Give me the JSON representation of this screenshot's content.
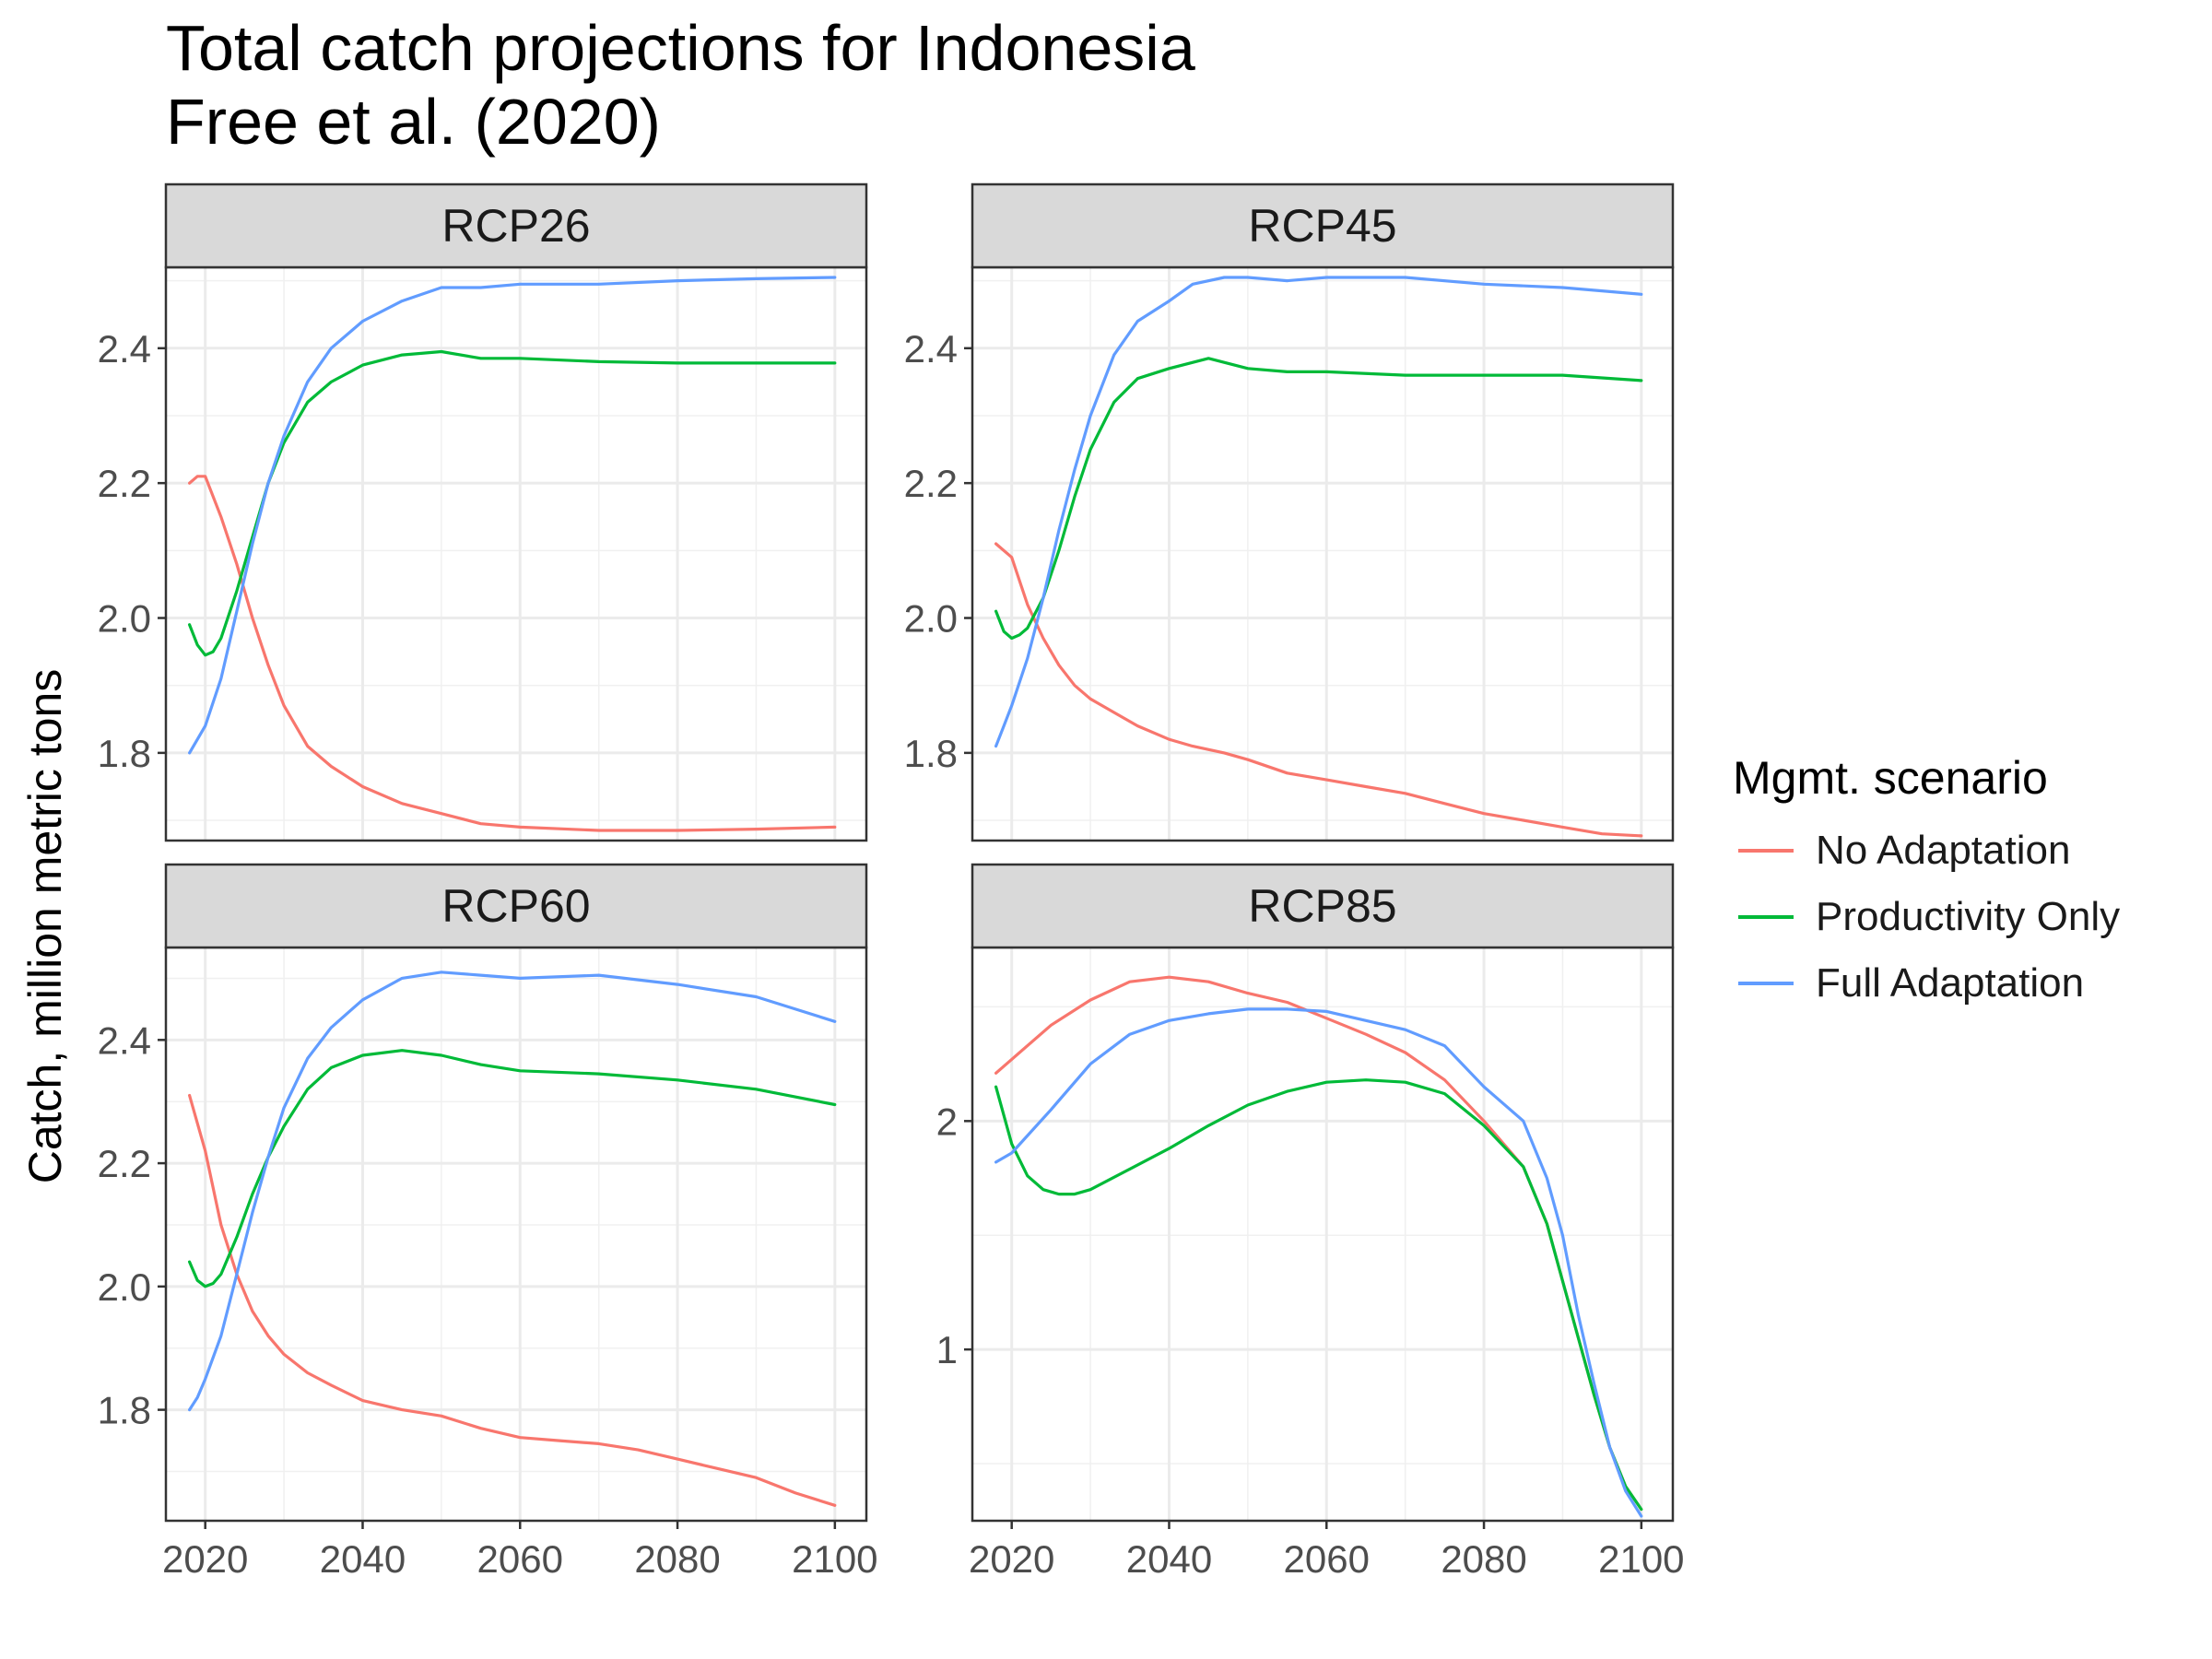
{
  "title_lines": [
    "Total catch projections for Indonesia",
    "Free et al. (2020)"
  ],
  "legend": {
    "title": "Mgmt. scenario",
    "items": [
      {
        "label": "No Adaptation",
        "color": "#F8766D"
      },
      {
        "label": "Productivity Only",
        "color": "#00BA38"
      },
      {
        "label": "Full Adaptation",
        "color": "#619CFF"
      }
    ]
  },
  "chart_data": {
    "type": "line",
    "ylabel": "Catch, million metric tons",
    "xlabel": "",
    "xlim": [
      2015,
      2104
    ],
    "x_ticks": [
      2020,
      2040,
      2060,
      2080,
      2100
    ],
    "grid": true,
    "legend_position": "right",
    "panels": [
      {
        "name": "RCP26",
        "ylim": [
          1.67,
          2.52
        ],
        "y_ticks": [
          1.8,
          2.0,
          2.2,
          2.4
        ],
        "y_tick_labels": [
          "1.8",
          "2.0",
          "2.2",
          "2.4"
        ],
        "series": [
          {
            "name": "No Adaptation",
            "x": [
              2018,
              2019,
              2020,
              2022,
              2024,
              2026,
              2028,
              2030,
              2033,
              2036,
              2040,
              2045,
              2050,
              2055,
              2060,
              2070,
              2080,
              2090,
              2100
            ],
            "values": [
              2.2,
              2.21,
              2.21,
              2.15,
              2.08,
              2.0,
              1.93,
              1.87,
              1.81,
              1.78,
              1.75,
              1.725,
              1.71,
              1.695,
              1.69,
              1.685,
              1.685,
              1.687,
              1.69
            ]
          },
          {
            "name": "Productivity Only",
            "x": [
              2018,
              2019,
              2020,
              2021,
              2022,
              2024,
              2026,
              2028,
              2030,
              2033,
              2036,
              2040,
              2045,
              2050,
              2055,
              2060,
              2070,
              2080,
              2090,
              2100
            ],
            "values": [
              1.99,
              1.96,
              1.945,
              1.95,
              1.97,
              2.04,
              2.12,
              2.2,
              2.26,
              2.32,
              2.35,
              2.375,
              2.39,
              2.395,
              2.385,
              2.385,
              2.38,
              2.378,
              2.378,
              2.378
            ]
          },
          {
            "name": "Full Adaptation",
            "x": [
              2018,
              2019,
              2020,
              2022,
              2024,
              2026,
              2028,
              2030,
              2033,
              2036,
              2040,
              2045,
              2050,
              2055,
              2060,
              2070,
              2080,
              2090,
              2100
            ],
            "values": [
              1.8,
              1.82,
              1.84,
              1.91,
              2.01,
              2.11,
              2.2,
              2.27,
              2.35,
              2.4,
              2.44,
              2.47,
              2.49,
              2.49,
              2.495,
              2.495,
              2.5,
              2.503,
              2.505
            ]
          }
        ]
      },
      {
        "name": "RCP45",
        "ylim": [
          1.67,
          2.52
        ],
        "y_ticks": [
          1.8,
          2.0,
          2.2,
          2.4
        ],
        "y_tick_labels": [
          "1.8",
          "2.0",
          "2.2",
          "2.4"
        ],
        "series": [
          {
            "name": "No Adaptation",
            "x": [
              2018,
              2020,
              2022,
              2024,
              2026,
              2028,
              2030,
              2033,
              2036,
              2040,
              2043,
              2047,
              2050,
              2055,
              2060,
              2065,
              2070,
              2075,
              2080,
              2085,
              2090,
              2095,
              2100
            ],
            "values": [
              2.11,
              2.09,
              2.02,
              1.97,
              1.93,
              1.9,
              1.88,
              1.86,
              1.84,
              1.82,
              1.81,
              1.8,
              1.79,
              1.77,
              1.76,
              1.75,
              1.74,
              1.725,
              1.71,
              1.7,
              1.69,
              1.68,
              1.677
            ]
          },
          {
            "name": "Productivity Only",
            "x": [
              2018,
              2019,
              2020,
              2021,
              2022,
              2024,
              2026,
              2028,
              2030,
              2033,
              2036,
              2040,
              2045,
              2050,
              2055,
              2060,
              2070,
              2080,
              2090,
              2100
            ],
            "values": [
              2.01,
              1.98,
              1.97,
              1.975,
              1.985,
              2.03,
              2.1,
              2.18,
              2.25,
              2.32,
              2.355,
              2.37,
              2.385,
              2.37,
              2.365,
              2.365,
              2.36,
              2.36,
              2.36,
              2.352
            ]
          },
          {
            "name": "Full Adaptation",
            "x": [
              2018,
              2019,
              2020,
              2022,
              2024,
              2026,
              2028,
              2030,
              2033,
              2036,
              2040,
              2043,
              2047,
              2050,
              2055,
              2060,
              2070,
              2080,
              2090,
              2095,
              2100
            ],
            "values": [
              1.81,
              1.84,
              1.87,
              1.94,
              2.03,
              2.13,
              2.22,
              2.3,
              2.39,
              2.44,
              2.47,
              2.495,
              2.505,
              2.505,
              2.5,
              2.505,
              2.505,
              2.495,
              2.49,
              2.485,
              2.48
            ]
          }
        ]
      },
      {
        "name": "RCP60",
        "ylim": [
          1.62,
          2.55
        ],
        "y_ticks": [
          1.8,
          2.0,
          2.2,
          2.4
        ],
        "y_tick_labels": [
          "1.8",
          "2.0",
          "2.2",
          "2.4"
        ],
        "series": [
          {
            "name": "No Adaptation",
            "x": [
              2018,
              2020,
              2022,
              2024,
              2026,
              2028,
              2030,
              2033,
              2036,
              2040,
              2045,
              2050,
              2055,
              2060,
              2065,
              2070,
              2075,
              2080,
              2085,
              2090,
              2095,
              2100
            ],
            "values": [
              2.31,
              2.22,
              2.1,
              2.02,
              1.96,
              1.92,
              1.89,
              1.86,
              1.84,
              1.815,
              1.8,
              1.79,
              1.77,
              1.755,
              1.75,
              1.745,
              1.735,
              1.72,
              1.705,
              1.69,
              1.665,
              1.645
            ]
          },
          {
            "name": "Productivity Only",
            "x": [
              2018,
              2019,
              2020,
              2021,
              2022,
              2024,
              2026,
              2028,
              2030,
              2033,
              2036,
              2040,
              2045,
              2050,
              2055,
              2060,
              2070,
              2080,
              2090,
              2100
            ],
            "values": [
              2.04,
              2.01,
              2.0,
              2.005,
              2.02,
              2.08,
              2.15,
              2.21,
              2.26,
              2.32,
              2.355,
              2.375,
              2.383,
              2.375,
              2.36,
              2.35,
              2.345,
              2.335,
              2.32,
              2.295
            ]
          },
          {
            "name": "Full Adaptation",
            "x": [
              2018,
              2019,
              2020,
              2022,
              2024,
              2026,
              2028,
              2030,
              2033,
              2036,
              2040,
              2045,
              2050,
              2055,
              2060,
              2070,
              2080,
              2090,
              2095,
              2100
            ],
            "values": [
              1.8,
              1.82,
              1.85,
              1.92,
              2.02,
              2.12,
              2.21,
              2.29,
              2.37,
              2.42,
              2.465,
              2.5,
              2.51,
              2.505,
              2.5,
              2.505,
              2.49,
              2.47,
              2.45,
              2.43
            ]
          }
        ]
      },
      {
        "name": "RCP85",
        "ylim": [
          0.25,
          2.76
        ],
        "y_ticks": [
          1,
          2
        ],
        "y_tick_labels": [
          "1",
          "2"
        ],
        "series": [
          {
            "name": "No Adaptation",
            "x": [
              2018,
              2020,
              2025,
              2030,
              2035,
              2040,
              2045,
              2050,
              2055,
              2060,
              2065,
              2070,
              2075,
              2080,
              2085,
              2088,
              2090,
              2092,
              2094,
              2096,
              2098,
              2100
            ],
            "values": [
              2.21,
              2.27,
              2.42,
              2.53,
              2.61,
              2.63,
              2.61,
              2.56,
              2.52,
              2.45,
              2.38,
              2.3,
              2.18,
              2.0,
              1.8,
              1.55,
              1.3,
              1.05,
              0.8,
              0.57,
              0.4,
              0.3
            ]
          },
          {
            "name": "Productivity Only",
            "x": [
              2018,
              2020,
              2022,
              2024,
              2026,
              2028,
              2030,
              2035,
              2040,
              2045,
              2050,
              2055,
              2060,
              2065,
              2070,
              2075,
              2080,
              2085,
              2088,
              2090,
              2092,
              2094,
              2096,
              2098,
              2100
            ],
            "values": [
              2.15,
              1.9,
              1.76,
              1.7,
              1.68,
              1.68,
              1.7,
              1.79,
              1.88,
              1.98,
              2.07,
              2.13,
              2.17,
              2.18,
              2.17,
              2.12,
              1.98,
              1.8,
              1.55,
              1.3,
              1.05,
              0.8,
              0.57,
              0.4,
              0.3
            ]
          },
          {
            "name": "Full Adaptation",
            "x": [
              2018,
              2020,
              2025,
              2030,
              2035,
              2040,
              2045,
              2050,
              2055,
              2060,
              2065,
              2070,
              2075,
              2080,
              2085,
              2088,
              2090,
              2092,
              2094,
              2096,
              2098,
              2100
            ],
            "values": [
              1.82,
              1.86,
              2.05,
              2.25,
              2.38,
              2.44,
              2.47,
              2.49,
              2.49,
              2.48,
              2.44,
              2.4,
              2.33,
              2.15,
              2.0,
              1.75,
              1.5,
              1.15,
              0.85,
              0.57,
              0.38,
              0.27
            ]
          }
        ]
      }
    ]
  }
}
